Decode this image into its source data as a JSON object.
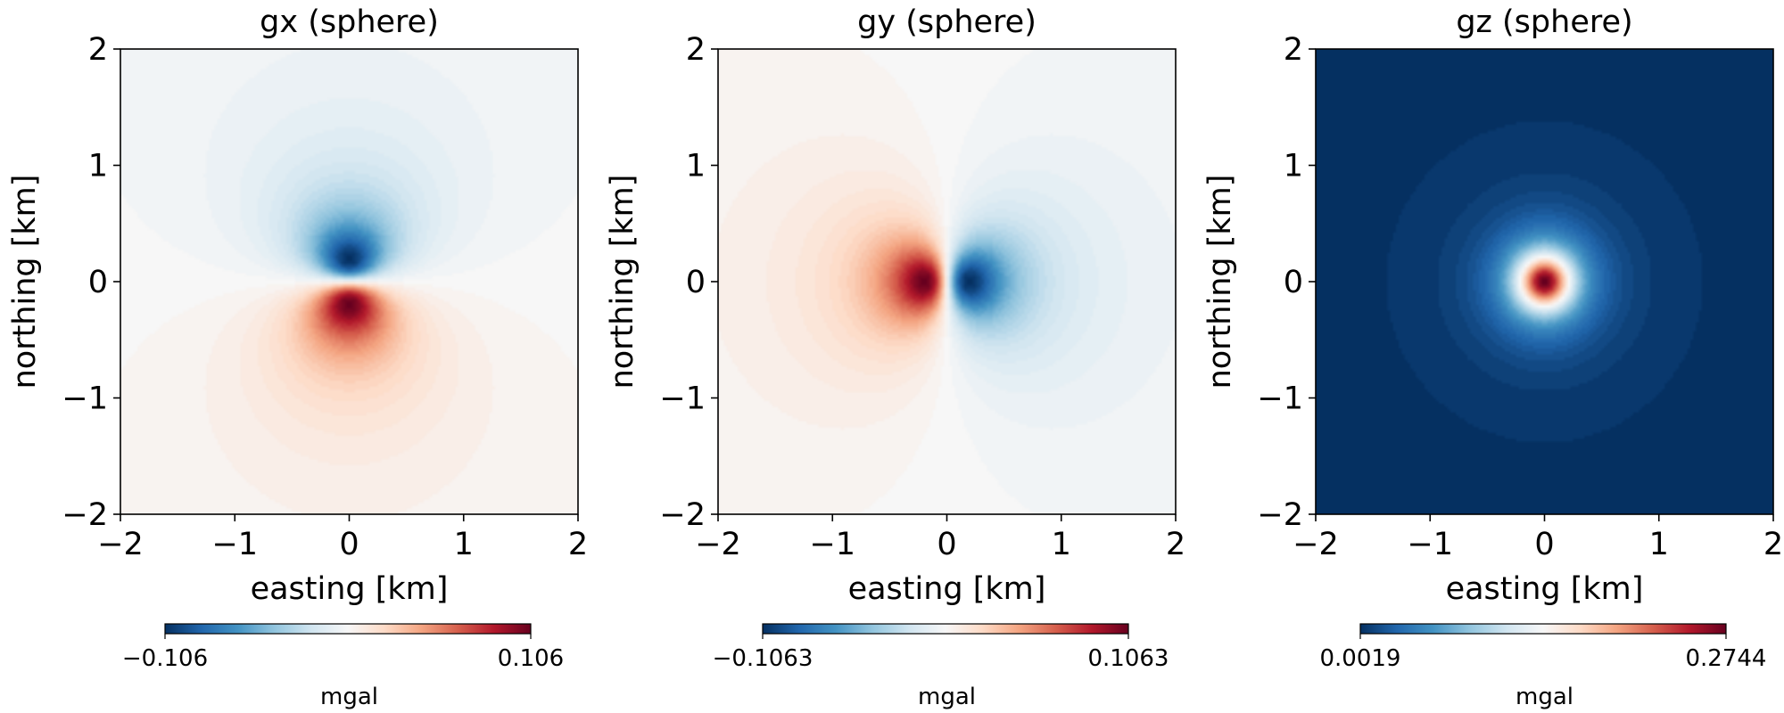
{
  "chart_data": [
    {
      "type": "heatmap",
      "title": "gx (sphere)",
      "xlabel": "easting [km]",
      "ylabel": "northing [km]",
      "xlim": [
        -2,
        2
      ],
      "ylim": [
        -2,
        2
      ],
      "xticks": [
        -2,
        -1,
        0,
        1,
        2
      ],
      "yticks": [
        -2,
        -1,
        0,
        1,
        2
      ],
      "xtick_labels": [
        "−2",
        "−1",
        "0",
        "1",
        "2"
      ],
      "ytick_labels": [
        "−2",
        "−1",
        "0",
        "1",
        "2"
      ],
      "colormap": "RdBu_r",
      "field": "dipole-north",
      "source_center": [
        0,
        0
      ],
      "extrema": [
        {
          "x": 0,
          "y": 0.4,
          "value": -0.106
        },
        {
          "x": 0,
          "y": -0.4,
          "value": 0.106
        }
      ],
      "colorbar": {
        "min": -0.106,
        "max": 0.106,
        "tick_labels": [
          "−0.106",
          "0.106"
        ],
        "label": "mgal",
        "orientation": "horizontal"
      },
      "grid": false
    },
    {
      "type": "heatmap",
      "title": "gy (sphere)",
      "xlabel": "easting [km]",
      "ylabel": "northing [km]",
      "xlim": [
        -2,
        2
      ],
      "ylim": [
        -2,
        2
      ],
      "xticks": [
        -2,
        -1,
        0,
        1,
        2
      ],
      "yticks": [
        -2,
        -1,
        0,
        1,
        2
      ],
      "xtick_labels": [
        "−2",
        "−1",
        "0",
        "1",
        "2"
      ],
      "ytick_labels": [
        "−2",
        "−1",
        "0",
        "1",
        "2"
      ],
      "colormap": "RdBu_r",
      "field": "dipole-east",
      "source_center": [
        0,
        0
      ],
      "extrema": [
        {
          "x": -0.4,
          "y": 0,
          "value": 0.1063
        },
        {
          "x": 0.4,
          "y": 0,
          "value": -0.1063
        }
      ],
      "colorbar": {
        "min": -0.1063,
        "max": 0.1063,
        "tick_labels": [
          "−0.1063",
          "0.1063"
        ],
        "label": "mgal",
        "orientation": "horizontal"
      },
      "grid": false
    },
    {
      "type": "heatmap",
      "title": "gz (sphere)",
      "xlabel": "easting [km]",
      "ylabel": "northing [km]",
      "xlim": [
        -2,
        2
      ],
      "ylim": [
        -2,
        2
      ],
      "xticks": [
        -2,
        -1,
        0,
        1,
        2
      ],
      "yticks": [
        -2,
        -1,
        0,
        1,
        2
      ],
      "xtick_labels": [
        "−2",
        "−1",
        "0",
        "1",
        "2"
      ],
      "ytick_labels": [
        "−2",
        "−1",
        "0",
        "1",
        "2"
      ],
      "colormap": "RdBu_r",
      "field": "radial",
      "source_center": [
        0,
        0
      ],
      "extrema": [
        {
          "x": 0,
          "y": 0,
          "value": 0.2744
        }
      ],
      "colorbar": {
        "min": 0.0019,
        "max": 0.2744,
        "tick_labels": [
          "0.0019",
          "0.2744"
        ],
        "label": "mgal",
        "orientation": "horizontal"
      },
      "grid": false
    }
  ]
}
